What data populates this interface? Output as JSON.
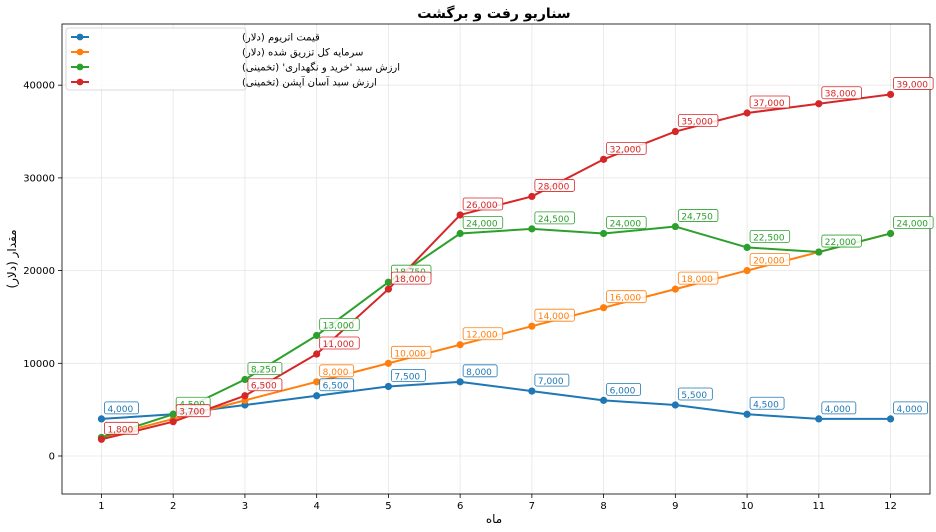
{
  "chart_data": {
    "type": "line",
    "title": "سناریو رفت و برگشت",
    "xlabel": "ماه",
    "ylabel": "مقدار (دلار)",
    "x": [
      1,
      2,
      3,
      4,
      5,
      6,
      7,
      8,
      9,
      10,
      11,
      12
    ],
    "xlim": [
      0.45,
      12.55
    ],
    "ylim": [
      -4100,
      46600
    ],
    "yticks": [
      0,
      10000,
      20000,
      30000,
      40000
    ],
    "grid": true,
    "legend_position": "top-left",
    "series": [
      {
        "name": "قیمت اتریوم (دلار)",
        "color": "#1f77b4",
        "values": [
          4000,
          4500,
          5500,
          6500,
          7500,
          8000,
          7000,
          6000,
          5500,
          4500,
          4000,
          4000
        ],
        "labels": [
          "4,000",
          null,
          null,
          "6,500",
          "7,500",
          "8,000",
          "7,000",
          "6,000",
          "5,500",
          "4,500",
          "4,000",
          "4,000"
        ]
      },
      {
        "name": "سرمایه کل تزریق شده (دلار)",
        "color": "#ff7f0e",
        "values": [
          2000,
          4000,
          6000,
          8000,
          10000,
          12000,
          14000,
          16000,
          18000,
          20000,
          22000,
          24000
        ],
        "labels": [
          null,
          null,
          null,
          "8,000",
          "10,000",
          "12,000",
          "14,000",
          "16,000",
          "18,000",
          "20,000",
          null,
          null
        ]
      },
      {
        "name": "ارزش سبد 'خرید و نگهداری' (تخمینی)",
        "color": "#2ca02c",
        "values": [
          2000,
          4500,
          8250,
          13000,
          18750,
          24000,
          24500,
          24000,
          24750,
          22500,
          22000,
          24000
        ],
        "labels": [
          null,
          "4,500",
          "8,250",
          "13,000",
          "18,750",
          "24,000",
          "24,500",
          "24,000",
          "24,750",
          "22,500",
          "22,000",
          "24,000"
        ]
      },
      {
        "name": "ارزش سبد آسان آپشن (تخمینی)",
        "color": "#d62728",
        "values": [
          1800,
          3700,
          6500,
          11000,
          18000,
          26000,
          28000,
          32000,
          35000,
          37000,
          38000,
          39000
        ],
        "labels": [
          "1,800",
          "3,700",
          "6,500",
          "11,000",
          "18,000",
          "26,000",
          "28,000",
          "32,000",
          "35,000",
          "37,000",
          "38,000",
          "39,000"
        ]
      }
    ]
  }
}
